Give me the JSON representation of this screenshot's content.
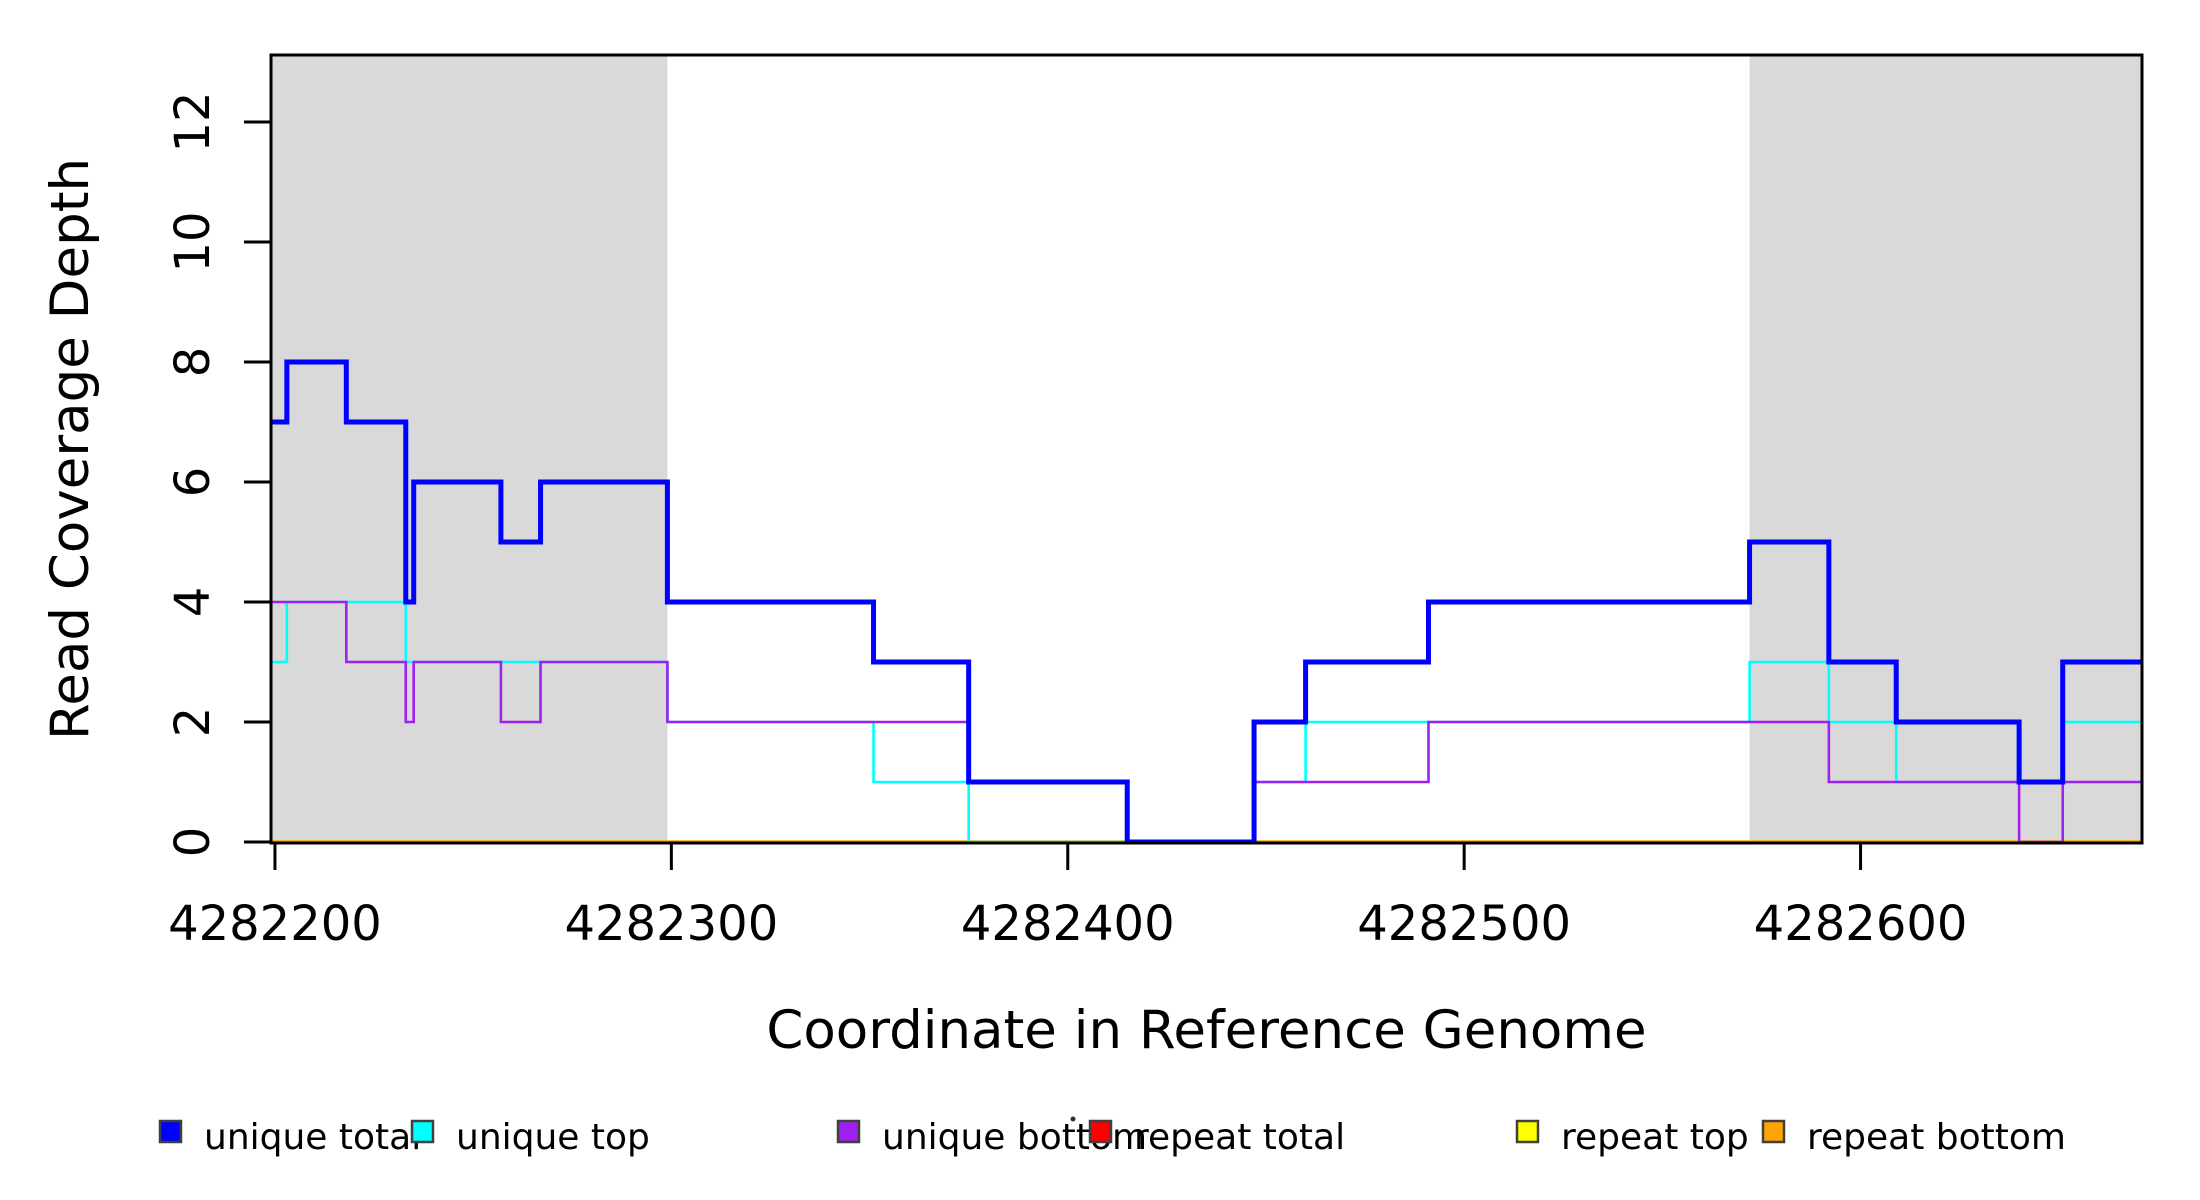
{
  "chart_data": {
    "type": "line",
    "subtype": "step-coverage-plot",
    "title": "",
    "xlabel": "Coordinate in Reference Genome",
    "ylabel": "Read Coverage Depth",
    "xlim": [
      4282199,
      4282671
    ],
    "ylim": [
      0,
      13.1
    ],
    "grid": false,
    "background_color": "#FFFFFF",
    "axis_color": "#000000",
    "shade_color": "#D9D9D9",
    "shaded_regions": [
      {
        "x0": 4282199,
        "x1": 4282299
      },
      {
        "x0": 4282572,
        "x1": 4282671
      }
    ],
    "x_axis": {
      "label": "Coordinate in Reference Genome",
      "ticks": [
        4282200,
        4282300,
        4282400,
        4282500,
        4282600
      ],
      "tick_labels": [
        "4282200",
        "4282300",
        "4282400",
        "4282500",
        "4282600"
      ]
    },
    "y_axis": {
      "label": "Read Coverage Depth",
      "ticks": [
        0,
        2,
        4,
        6,
        8,
        10,
        12
      ],
      "tick_labels": [
        "0",
        "2",
        "4",
        "6",
        "8",
        "10",
        "12"
      ]
    },
    "series": [
      {
        "name": "unique total",
        "color": "#0000FF",
        "line_width": 5,
        "z": 6,
        "points": [
          [
            4282199,
            7
          ],
          [
            4282203,
            8
          ],
          [
            4282218,
            7
          ],
          [
            4282233,
            4
          ],
          [
            4282235,
            6
          ],
          [
            4282257,
            5
          ],
          [
            4282267,
            6
          ],
          [
            4282299,
            4
          ],
          [
            4282351,
            3
          ],
          [
            4282375,
            1
          ],
          [
            4282415,
            0
          ],
          [
            4282447,
            2
          ],
          [
            4282460,
            3
          ],
          [
            4282491,
            4
          ],
          [
            4282572,
            5
          ],
          [
            4282592,
            3
          ],
          [
            4282609,
            2
          ],
          [
            4282640,
            1
          ],
          [
            4282651,
            3
          ]
        ]
      },
      {
        "name": "unique top",
        "color": "#00FFFF",
        "line_width": 2.6,
        "z": 4,
        "points": [
          [
            4282199,
            3
          ],
          [
            4282203,
            4
          ],
          [
            4282233,
            3
          ],
          [
            4282299,
            2
          ],
          [
            4282351,
            1
          ],
          [
            4282375,
            0
          ],
          [
            4282447,
            1
          ],
          [
            4282460,
            2
          ],
          [
            4282572,
            3
          ],
          [
            4282592,
            2
          ],
          [
            4282609,
            1
          ],
          [
            4282651,
            2
          ]
        ]
      },
      {
        "name": "unique bottom",
        "color": "#A020F0",
        "line_width": 2.6,
        "z": 5,
        "points": [
          [
            4282199,
            4
          ],
          [
            4282218,
            3
          ],
          [
            4282233,
            2
          ],
          [
            4282235,
            3
          ],
          [
            4282257,
            2
          ],
          [
            4282267,
            3
          ],
          [
            4282299,
            2
          ],
          [
            4282375,
            1
          ],
          [
            4282415,
            0
          ],
          [
            4282447,
            1
          ],
          [
            4282491,
            2
          ],
          [
            4282592,
            1
          ],
          [
            4282640,
            0
          ],
          [
            4282651,
            1
          ]
        ]
      },
      {
        "name": "repeat total",
        "color": "#FF0000",
        "line_width": 3,
        "z": 1,
        "points": [
          [
            4282199,
            0
          ]
        ]
      },
      {
        "name": "repeat top",
        "color": "#FFFF00",
        "line_width": 3,
        "z": 2,
        "points": [
          [
            4282199,
            0
          ]
        ]
      },
      {
        "name": "repeat bottom",
        "color": "#FFA500",
        "line_width": 3.5,
        "z": 3,
        "points": [
          [
            4282199,
            0
          ]
        ]
      }
    ],
    "legend": {
      "position": "bottom",
      "swatch_border_color": "#404040",
      "entries": [
        {
          "label": "unique total",
          "color": "#0000FF"
        },
        {
          "label": "unique top",
          "color": "#00FFFF"
        },
        {
          "label": "unique bottom",
          "color": "#A020F0"
        },
        {
          "label": "repeat total",
          "color": "#FF0000"
        },
        {
          "label": "repeat top",
          "color": "#FFFF00"
        },
        {
          "label": "repeat bottom",
          "color": "#FFA500"
        }
      ]
    }
  }
}
